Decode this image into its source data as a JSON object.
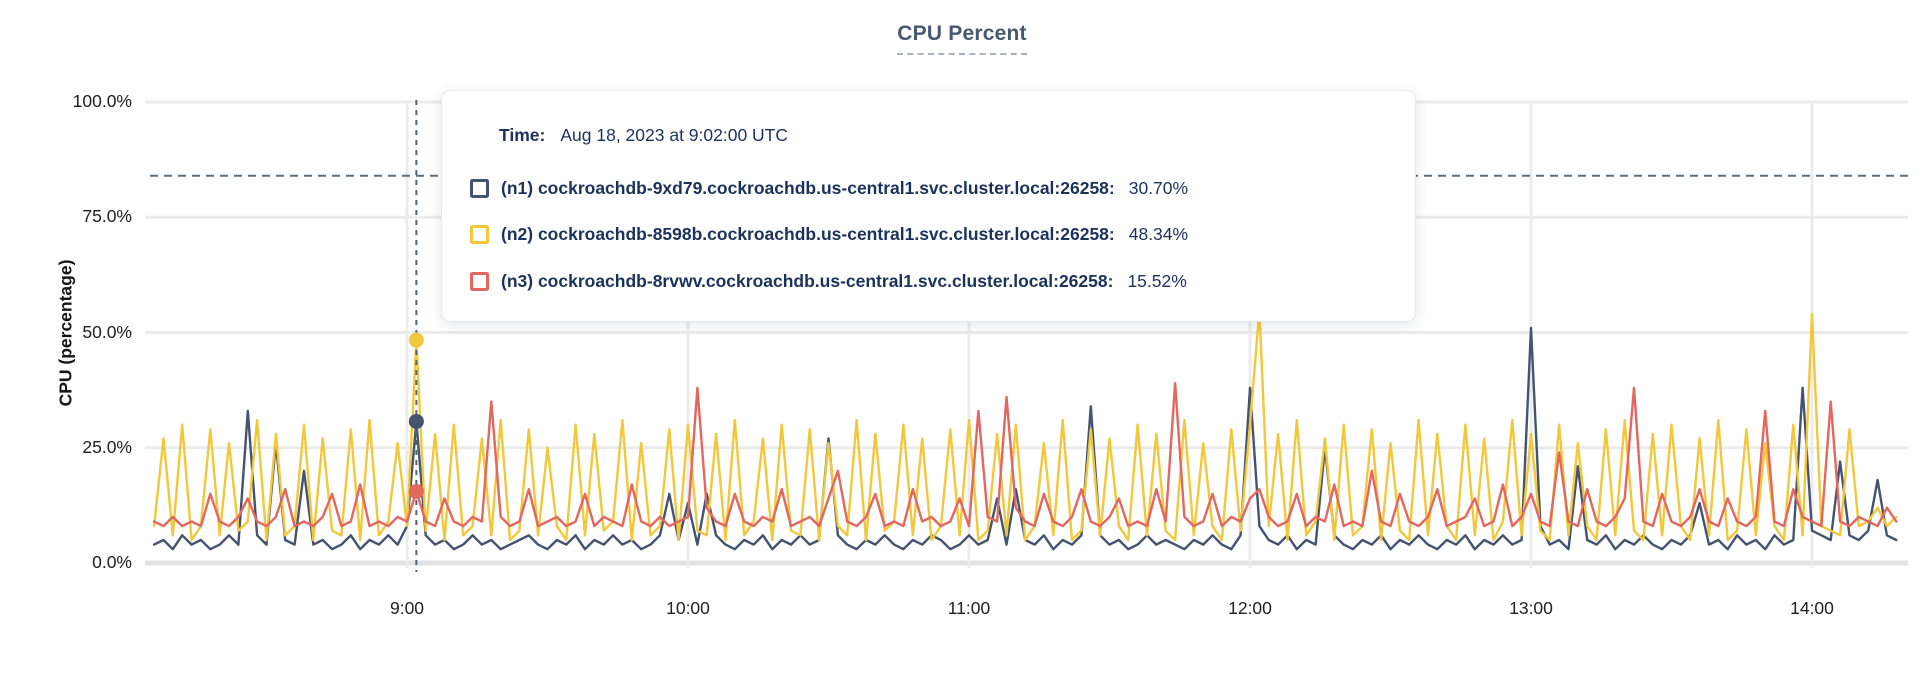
{
  "header": {
    "title": "CPU Percent"
  },
  "y_axis": {
    "label": "CPU (percentage)"
  },
  "tooltip": {
    "time_label": "Time:",
    "time_value": "Aug 18, 2023 at 9:02:00 UTC",
    "rows": [
      {
        "name": "(n1) cockroachdb-9xd79.cockroachdb.us-central1.svc.cluster.local:26258:",
        "value": "30.70%",
        "color": "#44536f"
      },
      {
        "name": "(n2) cockroachdb-8598b.cockroachdb.us-central1.svc.cluster.local:26258:",
        "value": "48.34%",
        "color": "#f2c83b"
      },
      {
        "name": "(n3) cockroachdb-8rvwv.cockroachdb.us-central1.svc.cluster.local:26258:",
        "value": "15.52%",
        "color": "#e2675f"
      }
    ]
  },
  "chart_data": {
    "type": "line",
    "title": "CPU Percent",
    "xlabel": "",
    "ylabel": "CPU (percentage)",
    "ylim": [
      0,
      100
    ],
    "grid": true,
    "legend_position": "hover-tooltip",
    "y_ticks": [
      {
        "value": 100,
        "label": "100.0%"
      },
      {
        "value": 75,
        "label": "75.0%"
      },
      {
        "value": 50,
        "label": "50.0%"
      },
      {
        "value": 25,
        "label": "25.0%"
      },
      {
        "value": 0,
        "label": "0.0%"
      }
    ],
    "x_ticks": [
      {
        "hour": 9,
        "label": "9:00"
      },
      {
        "hour": 10,
        "label": "10:00"
      },
      {
        "hour": 11,
        "label": "11:00"
      },
      {
        "hour": 12,
        "label": "12:00"
      },
      {
        "hour": 13,
        "label": "13:00"
      },
      {
        "hour": 14,
        "label": "14:00"
      }
    ],
    "x_start_hour": 8.1,
    "x_step_minutes": 2,
    "threshold_percent": 84,
    "hover": {
      "time": "Aug 18, 2023 at 9:02:00 UTC",
      "hour": 9.0333,
      "points": [
        {
          "series": "n1",
          "value": 30.7
        },
        {
          "series": "n2",
          "value": 48.34
        },
        {
          "series": "n3",
          "value": 15.52
        }
      ]
    },
    "series": [
      {
        "id": "n1",
        "name": "cockroachdb-9xd79.cockroachdb.us-central1.svc.cluster.local:26258",
        "color": "#44536f",
        "values": [
          4,
          5,
          3,
          6,
          4,
          5,
          3,
          4,
          6,
          4,
          33,
          6,
          4,
          26,
          5,
          4,
          20,
          4,
          5,
          3,
          4,
          6,
          3,
          5,
          4,
          6,
          4,
          8,
          30.7,
          6,
          4,
          5,
          3,
          4,
          6,
          4,
          5,
          3,
          4,
          5,
          6,
          4,
          3,
          5,
          4,
          6,
          3,
          5,
          4,
          6,
          4,
          5,
          3,
          4,
          6,
          15,
          5,
          13,
          4,
          15,
          6,
          4,
          3,
          5,
          4,
          6,
          3,
          5,
          4,
          6,
          4,
          5,
          27,
          6,
          4,
          3,
          5,
          4,
          6,
          4,
          3,
          5,
          4,
          6,
          5,
          3,
          4,
          6,
          4,
          5,
          14,
          4,
          16,
          5,
          4,
          6,
          3,
          5,
          4,
          6,
          34,
          6,
          4,
          5,
          3,
          4,
          6,
          4,
          5,
          4,
          3,
          5,
          4,
          6,
          4,
          3,
          6,
          38,
          8,
          5,
          4,
          6,
          3,
          5,
          4,
          25,
          6,
          4,
          3,
          5,
          4,
          6,
          3,
          5,
          4,
          6,
          4,
          3,
          5,
          4,
          6,
          3,
          5,
          4,
          6,
          4,
          5,
          51,
          8,
          4,
          5,
          3,
          21,
          5,
          4,
          6,
          3,
          5,
          4,
          6,
          4,
          3,
          5,
          4,
          6,
          13,
          4,
          5,
          3,
          6,
          4,
          5,
          3,
          6,
          4,
          5,
          38,
          7,
          6,
          5,
          22,
          6,
          5,
          7,
          18,
          6,
          5
        ]
      },
      {
        "id": "n2",
        "name": "cockroachdb-8598b.cockroachdb.us-central1.svc.cluster.local:26258",
        "color": "#f2c83b",
        "values": [
          8,
          27,
          6,
          30,
          5,
          8,
          29,
          6,
          26,
          7,
          9,
          31,
          5,
          28,
          6,
          8,
          30,
          5,
          27,
          7,
          6,
          29,
          5,
          31,
          6,
          9,
          26,
          8,
          48.3,
          7,
          28,
          5,
          30,
          6,
          8,
          27,
          6,
          31,
          5,
          7,
          29,
          6,
          25,
          8,
          5,
          30,
          6,
          28,
          7,
          9,
          31,
          5,
          26,
          6,
          8,
          29,
          5,
          30,
          7,
          6,
          28,
          5,
          31,
          6,
          9,
          27,
          5,
          30,
          7,
          6,
          29,
          5,
          26,
          8,
          6,
          31,
          5,
          28,
          7,
          9,
          30,
          6,
          27,
          5,
          8,
          29,
          6,
          31,
          5,
          7,
          28,
          6,
          30,
          5,
          8,
          26,
          6,
          31,
          5,
          7,
          29,
          6,
          27,
          8,
          5,
          30,
          6,
          28,
          7,
          5,
          31,
          6,
          26,
          8,
          5,
          29,
          7,
          30,
          55,
          8,
          28,
          5,
          31,
          6,
          9,
          27,
          5,
          30,
          6,
          8,
          29,
          5,
          26,
          7,
          5,
          31,
          6,
          28,
          8,
          5,
          30,
          6,
          27,
          5,
          9,
          31,
          6,
          28,
          7,
          5,
          30,
          6,
          26,
          8,
          5,
          29,
          6,
          31,
          7,
          5,
          28,
          6,
          30,
          8,
          5,
          27,
          6,
          31,
          5,
          7,
          29,
          6,
          26,
          8,
          5,
          30,
          6,
          54,
          8,
          7,
          6,
          29,
          8,
          9,
          12,
          8,
          10
        ]
      },
      {
        "id": "n3",
        "name": "cockroachdb-8rvwv.cockroachdb.us-central1.svc.cluster.local:26258",
        "color": "#e2675f",
        "values": [
          9,
          8,
          10,
          8,
          9,
          8,
          15,
          9,
          8,
          10,
          14,
          9,
          8,
          10,
          16,
          8,
          9,
          8,
          10,
          15,
          8,
          9,
          17,
          8,
          9,
          8,
          10,
          9,
          15.5,
          9,
          8,
          14,
          9,
          8,
          10,
          9,
          35,
          10,
          8,
          9,
          16,
          8,
          9,
          10,
          8,
          9,
          15,
          8,
          10,
          9,
          8,
          17,
          9,
          8,
          10,
          8,
          9,
          10,
          38,
          12,
          9,
          8,
          15,
          9,
          8,
          10,
          9,
          16,
          8,
          9,
          10,
          8,
          14,
          20,
          9,
          8,
          10,
          15,
          8,
          9,
          8,
          16,
          9,
          10,
          8,
          9,
          14,
          8,
          33,
          10,
          9,
          36,
          12,
          9,
          8,
          15,
          9,
          8,
          10,
          16,
          9,
          8,
          10,
          14,
          8,
          9,
          8,
          16,
          9,
          39,
          10,
          8,
          9,
          15,
          8,
          10,
          9,
          14,
          16,
          10,
          8,
          9,
          15,
          8,
          10,
          9,
          17,
          8,
          9,
          8,
          20,
          9,
          8,
          15,
          9,
          8,
          10,
          16,
          8,
          9,
          10,
          14,
          8,
          9,
          17,
          8,
          10,
          15,
          9,
          8,
          24,
          9,
          8,
          16,
          9,
          8,
          10,
          14,
          38,
          9,
          8,
          15,
          9,
          8,
          10,
          16,
          9,
          8,
          14,
          9,
          8,
          10,
          33,
          9,
          8,
          16,
          10,
          9,
          8,
          35,
          9,
          8,
          10,
          9,
          8,
          12,
          9
        ]
      }
    ]
  }
}
